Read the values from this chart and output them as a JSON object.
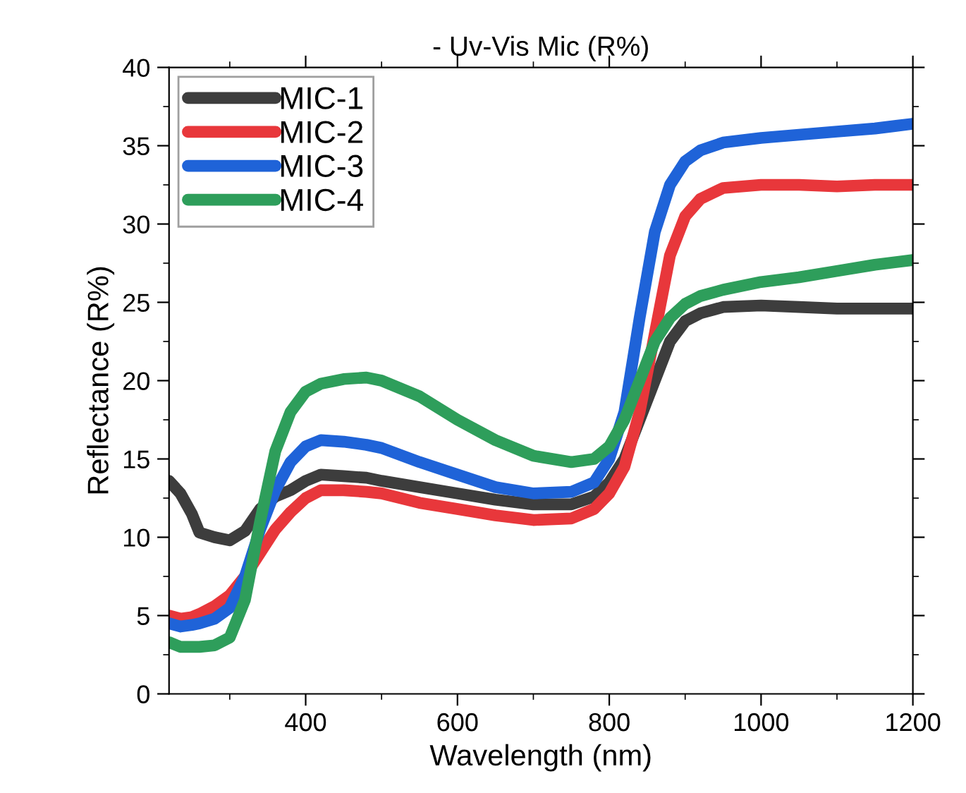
{
  "chart_data": {
    "type": "line",
    "title": "- Uv-Vis Mic (R%)",
    "xlabel": "Wavelength (nm)",
    "ylabel": "Reflectance (R%)",
    "x": [
      220,
      235,
      250,
      260,
      280,
      300,
      320,
      340,
      360,
      380,
      400,
      420,
      450,
      480,
      500,
      550,
      600,
      650,
      700,
      750,
      780,
      800,
      820,
      840,
      860,
      880,
      900,
      920,
      950,
      1000,
      1050,
      1100,
      1150,
      1200
    ],
    "series": [
      {
        "name": "MIC-1",
        "color": "#3d3d3d",
        "values": [
          13.6,
          12.8,
          11.5,
          10.3,
          10.0,
          9.8,
          10.4,
          11.8,
          12.6,
          13.0,
          13.6,
          14.0,
          13.9,
          13.8,
          13.6,
          13.2,
          12.8,
          12.4,
          12.1,
          12.1,
          12.6,
          13.5,
          15.0,
          17.5,
          20.0,
          22.5,
          23.8,
          24.3,
          24.7,
          24.8,
          24.7,
          24.6,
          24.6,
          24.6
        ]
      },
      {
        "name": "MIC-2",
        "color": "#e8373b",
        "values": [
          5.0,
          4.8,
          4.9,
          5.1,
          5.6,
          6.3,
          7.5,
          9.0,
          10.5,
          11.6,
          12.5,
          13.0,
          13.0,
          12.9,
          12.8,
          12.2,
          11.8,
          11.4,
          11.1,
          11.2,
          11.8,
          12.8,
          14.5,
          18.0,
          23.0,
          28.0,
          30.5,
          31.6,
          32.3,
          32.5,
          32.5,
          32.4,
          32.5,
          32.5
        ]
      },
      {
        "name": "MIC-3",
        "color": "#1f63d8",
        "values": [
          4.5,
          4.3,
          4.4,
          4.5,
          4.8,
          5.5,
          7.5,
          10.5,
          13.0,
          14.8,
          15.8,
          16.2,
          16.1,
          15.9,
          15.7,
          14.8,
          14.0,
          13.2,
          12.8,
          12.9,
          13.5,
          15.0,
          18.0,
          24.0,
          29.5,
          32.5,
          34.0,
          34.7,
          35.2,
          35.5,
          35.7,
          35.9,
          36.1,
          36.4
        ]
      },
      {
        "name": "MIC-4",
        "color": "#2e9e5b",
        "values": [
          3.3,
          3.0,
          3.0,
          3.0,
          3.1,
          3.6,
          6.0,
          11.0,
          15.5,
          18.0,
          19.3,
          19.8,
          20.1,
          20.2,
          20.0,
          19.0,
          17.5,
          16.2,
          15.2,
          14.8,
          15.0,
          15.8,
          17.5,
          20.0,
          22.5,
          24.0,
          24.9,
          25.4,
          25.8,
          26.3,
          26.6,
          27.0,
          27.4,
          27.7
        ]
      }
    ],
    "xlim": [
      220,
      1200
    ],
    "ylim": [
      0,
      40
    ],
    "xticks": [
      400,
      600,
      800,
      1000,
      1200
    ],
    "yticks": [
      0,
      5,
      10,
      15,
      20,
      25,
      30,
      35,
      40
    ],
    "grid": false,
    "legend": "top left",
    "marker": "none",
    "line_style": "solid"
  }
}
